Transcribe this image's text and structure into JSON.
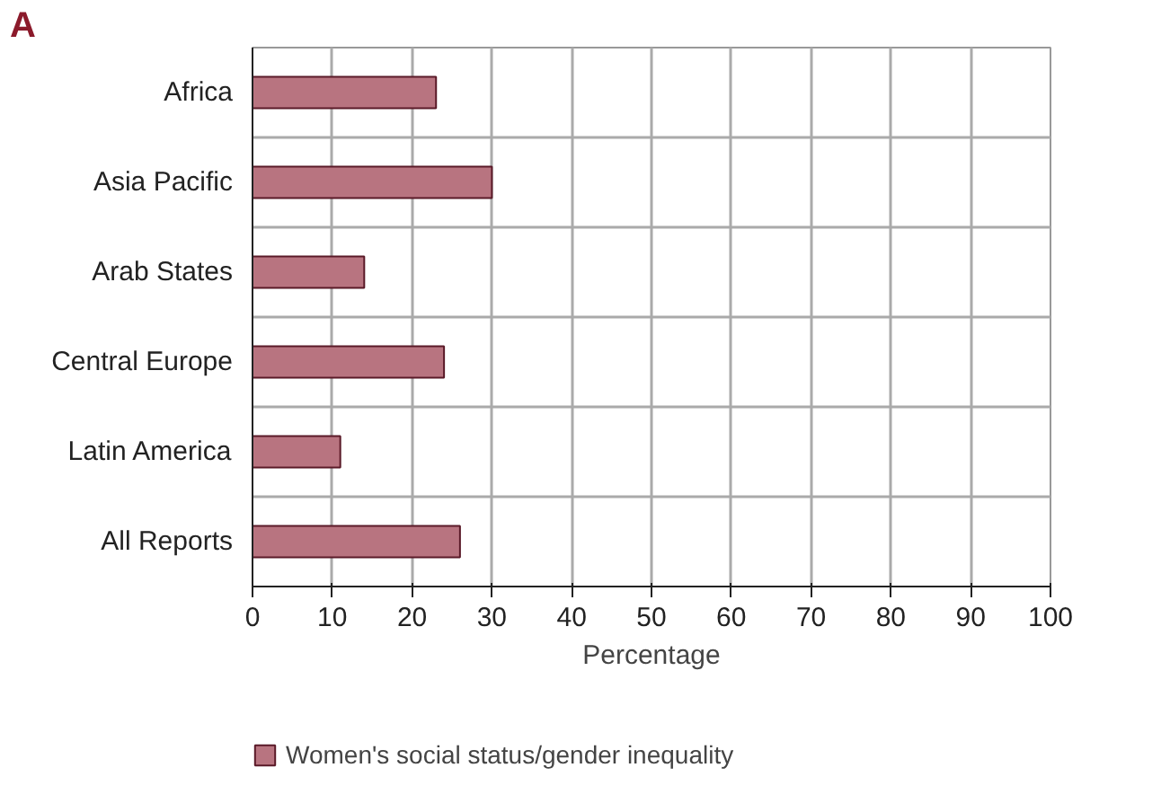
{
  "chart_data": {
    "type": "bar",
    "orientation": "horizontal",
    "categories": [
      "Africa",
      "Asia Pacific",
      "Arab States",
      "Central Europe",
      "Latin America",
      "All Reports"
    ],
    "series": [
      {
        "name": "Women's social status/gender inequality",
        "color": "#b87480",
        "values": [
          23,
          30,
          14,
          24,
          11,
          26
        ]
      }
    ],
    "xlim": [
      0,
      100
    ],
    "xticks": [
      0,
      10,
      20,
      30,
      40,
      50,
      60,
      70,
      80,
      90,
      100
    ],
    "xlabel": "Percentage",
    "annotations": [
      "A"
    ],
    "grid": true,
    "legend": "bottom left"
  }
}
